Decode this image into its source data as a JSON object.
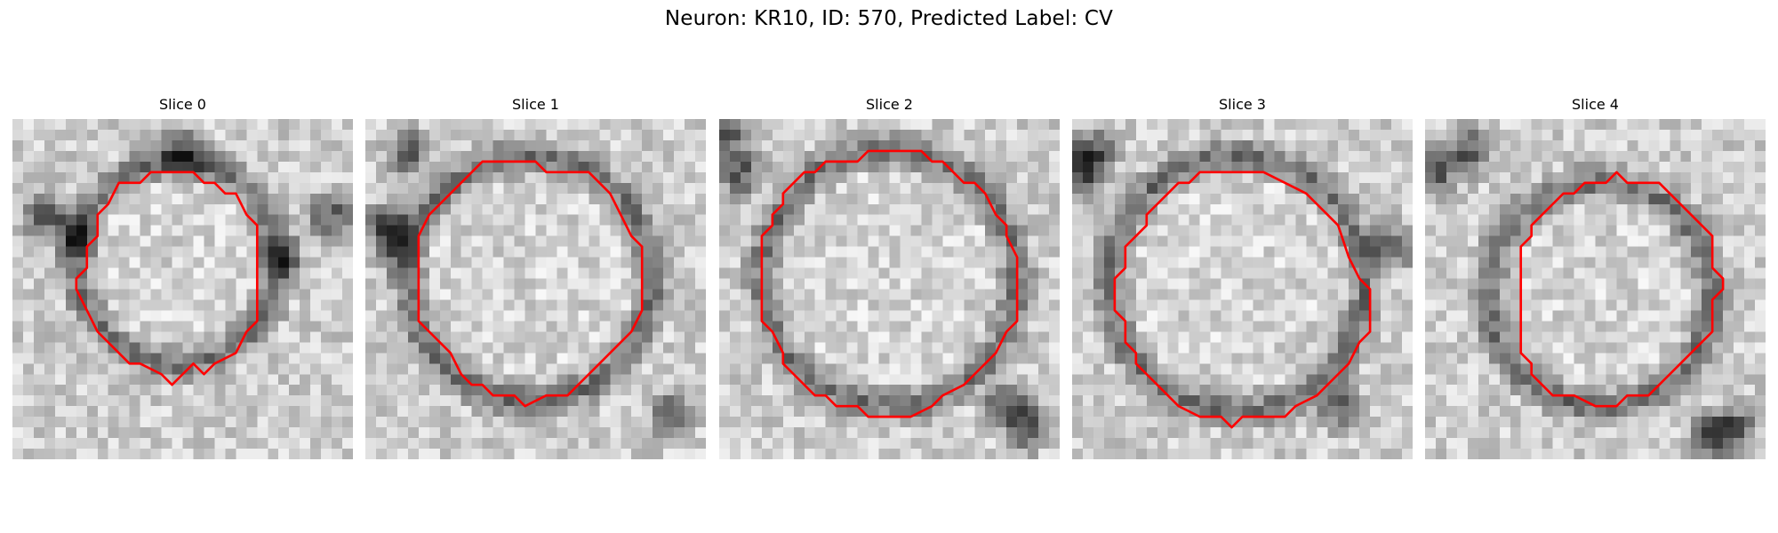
{
  "figure": {
    "title": "Neuron: KR10, ID: 570, Predicted Label: CV",
    "contour_color": "#ff0000",
    "colormap": "gray"
  },
  "slices": [
    {
      "label": "Slice 0",
      "grid_size": 32,
      "ring": {
        "cx": 15.5,
        "cy": 13.5,
        "r": 9.5,
        "dark_blobs": [
          [
            3,
            9
          ],
          [
            6,
            11
          ],
          [
            25,
            13
          ],
          [
            30,
            9
          ],
          [
            16,
            3
          ]
        ]
      },
      "contour": [
        [
          16,
          5
        ],
        [
          17,
          5
        ],
        [
          18,
          6
        ],
        [
          19,
          6
        ],
        [
          20,
          7
        ],
        [
          21,
          7
        ],
        [
          22,
          9
        ],
        [
          23,
          10
        ],
        [
          23,
          19
        ],
        [
          22,
          20
        ],
        [
          21,
          22
        ],
        [
          19,
          23
        ],
        [
          18,
          24
        ],
        [
          17,
          23
        ],
        [
          16,
          24
        ],
        [
          15,
          25
        ],
        [
          14,
          24
        ],
        [
          12,
          23
        ],
        [
          11,
          23
        ],
        [
          10,
          22
        ],
        [
          8,
          20
        ],
        [
          7,
          18
        ],
        [
          6,
          16
        ],
        [
          6,
          15
        ],
        [
          7,
          14
        ],
        [
          7,
          12
        ],
        [
          8,
          11
        ],
        [
          8,
          9
        ],
        [
          9,
          8
        ],
        [
          10,
          6
        ],
        [
          11,
          6
        ],
        [
          12,
          6
        ],
        [
          13,
          5
        ],
        [
          14,
          5
        ]
      ]
    },
    {
      "label": "Slice 1",
      "grid_size": 32,
      "ring": {
        "cx": 15.5,
        "cy": 15,
        "r": 11.5,
        "dark_blobs": [
          [
            2,
            10
          ],
          [
            3,
            12
          ],
          [
            4,
            3
          ],
          [
            29,
            28
          ]
        ]
      },
      "contour": [
        [
          11,
          4
        ],
        [
          16,
          4
        ],
        [
          17,
          5
        ],
        [
          18,
          5
        ],
        [
          21,
          5
        ],
        [
          22,
          6
        ],
        [
          23,
          7
        ],
        [
          24,
          9
        ],
        [
          25,
          11
        ],
        [
          26,
          12
        ],
        [
          26,
          18
        ],
        [
          25,
          20
        ],
        [
          24,
          21
        ],
        [
          23,
          22
        ],
        [
          22,
          23
        ],
        [
          21,
          24
        ],
        [
          20,
          25
        ],
        [
          19,
          26
        ],
        [
          17,
          26
        ],
        [
          15,
          27
        ],
        [
          14,
          26
        ],
        [
          12,
          26
        ],
        [
          11,
          25
        ],
        [
          10,
          25
        ],
        [
          9,
          24
        ],
        [
          8,
          22
        ],
        [
          6,
          20
        ],
        [
          5,
          19
        ],
        [
          5,
          11
        ],
        [
          6,
          9
        ],
        [
          7,
          8
        ],
        [
          8,
          7
        ],
        [
          9,
          6
        ],
        [
          10,
          5
        ]
      ]
    },
    {
      "label": "Slice 2",
      "grid_size": 32,
      "ring": {
        "cx": 16,
        "cy": 15,
        "r": 12,
        "dark_blobs": [
          [
            1,
            1
          ],
          [
            2,
            5
          ],
          [
            27,
            27
          ],
          [
            29,
            29
          ]
        ]
      },
      "contour": [
        [
          12,
          4
        ],
        [
          13,
          4
        ],
        [
          14,
          3
        ],
        [
          16,
          3
        ],
        [
          17,
          3
        ],
        [
          19,
          3
        ],
        [
          20,
          4
        ],
        [
          21,
          4
        ],
        [
          22,
          5
        ],
        [
          23,
          6
        ],
        [
          24,
          6
        ],
        [
          25,
          7
        ],
        [
          26,
          9
        ],
        [
          27,
          10
        ],
        [
          27,
          11
        ],
        [
          28,
          13
        ],
        [
          28,
          19
        ],
        [
          27,
          20
        ],
        [
          26,
          22
        ],
        [
          25,
          23
        ],
        [
          24,
          24
        ],
        [
          23,
          25
        ],
        [
          21,
          26
        ],
        [
          20,
          27
        ],
        [
          18,
          28
        ],
        [
          14,
          28
        ],
        [
          13,
          27
        ],
        [
          11,
          27
        ],
        [
          10,
          26
        ],
        [
          9,
          26
        ],
        [
          7,
          24
        ],
        [
          6,
          23
        ],
        [
          6,
          22
        ],
        [
          5,
          20
        ],
        [
          4,
          19
        ],
        [
          4,
          11
        ],
        [
          5,
          10
        ],
        [
          5,
          9
        ],
        [
          6,
          8
        ],
        [
          6,
          7
        ],
        [
          7,
          6
        ],
        [
          8,
          5
        ],
        [
          9,
          5
        ],
        [
          10,
          4
        ],
        [
          11,
          4
        ]
      ]
    },
    {
      "label": "Slice 3",
      "grid_size": 32,
      "ring": {
        "cx": 15.5,
        "cy": 15.5,
        "r": 12,
        "dark_blobs": [
          [
            1,
            5
          ],
          [
            2,
            3
          ],
          [
            25,
            27
          ],
          [
            30,
            12
          ]
        ]
      },
      "contour": [
        [
          12,
          5
        ],
        [
          18,
          5
        ],
        [
          20,
          6
        ],
        [
          22,
          7
        ],
        [
          23,
          8
        ],
        [
          24,
          9
        ],
        [
          25,
          10
        ],
        [
          26,
          13
        ],
        [
          27,
          15
        ],
        [
          28,
          16
        ],
        [
          28,
          20
        ],
        [
          27,
          21
        ],
        [
          26,
          23
        ],
        [
          25,
          24
        ],
        [
          24,
          25
        ],
        [
          23,
          26
        ],
        [
          21,
          27
        ],
        [
          20,
          28
        ],
        [
          16,
          28
        ],
        [
          15,
          29
        ],
        [
          14,
          28
        ],
        [
          13,
          28
        ],
        [
          12,
          28
        ],
        [
          10,
          27
        ],
        [
          9,
          26
        ],
        [
          8,
          25
        ],
        [
          7,
          24
        ],
        [
          6,
          23
        ],
        [
          6,
          22
        ],
        [
          5,
          21
        ],
        [
          5,
          19
        ],
        [
          4,
          18
        ],
        [
          4,
          15
        ],
        [
          5,
          14
        ],
        [
          5,
          12
        ],
        [
          6,
          11
        ],
        [
          7,
          10
        ],
        [
          7,
          9
        ],
        [
          8,
          8
        ],
        [
          9,
          7
        ],
        [
          10,
          6
        ],
        [
          11,
          6
        ]
      ]
    },
    {
      "label": "Slice 4",
      "grid_size": 32,
      "ring": {
        "cx": 16.5,
        "cy": 16.5,
        "r": 10.5,
        "dark_blobs": [
          [
            1,
            5
          ],
          [
            4,
            3
          ],
          [
            29,
            29
          ],
          [
            27,
            30
          ]
        ]
      },
      "contour": [
        [
          18,
          5
        ],
        [
          19,
          6
        ],
        [
          22,
          6
        ],
        [
          23,
          7
        ],
        [
          24,
          8
        ],
        [
          25,
          9
        ],
        [
          26,
          10
        ],
        [
          27,
          11
        ],
        [
          27,
          14
        ],
        [
          28,
          15
        ],
        [
          28,
          16
        ],
        [
          27,
          17
        ],
        [
          27,
          20
        ],
        [
          26,
          21
        ],
        [
          25,
          22
        ],
        [
          24,
          23
        ],
        [
          23,
          24
        ],
        [
          22,
          25
        ],
        [
          21,
          26
        ],
        [
          19,
          26
        ],
        [
          18,
          27
        ],
        [
          16,
          27
        ],
        [
          14,
          26
        ],
        [
          12,
          26
        ],
        [
          11,
          25
        ],
        [
          10,
          24
        ],
        [
          10,
          23
        ],
        [
          9,
          22
        ],
        [
          9,
          12
        ],
        [
          10,
          11
        ],
        [
          10,
          10
        ],
        [
          11,
          9
        ],
        [
          12,
          8
        ],
        [
          13,
          7
        ],
        [
          14,
          7
        ],
        [
          15,
          6
        ],
        [
          17,
          6
        ]
      ]
    }
  ]
}
